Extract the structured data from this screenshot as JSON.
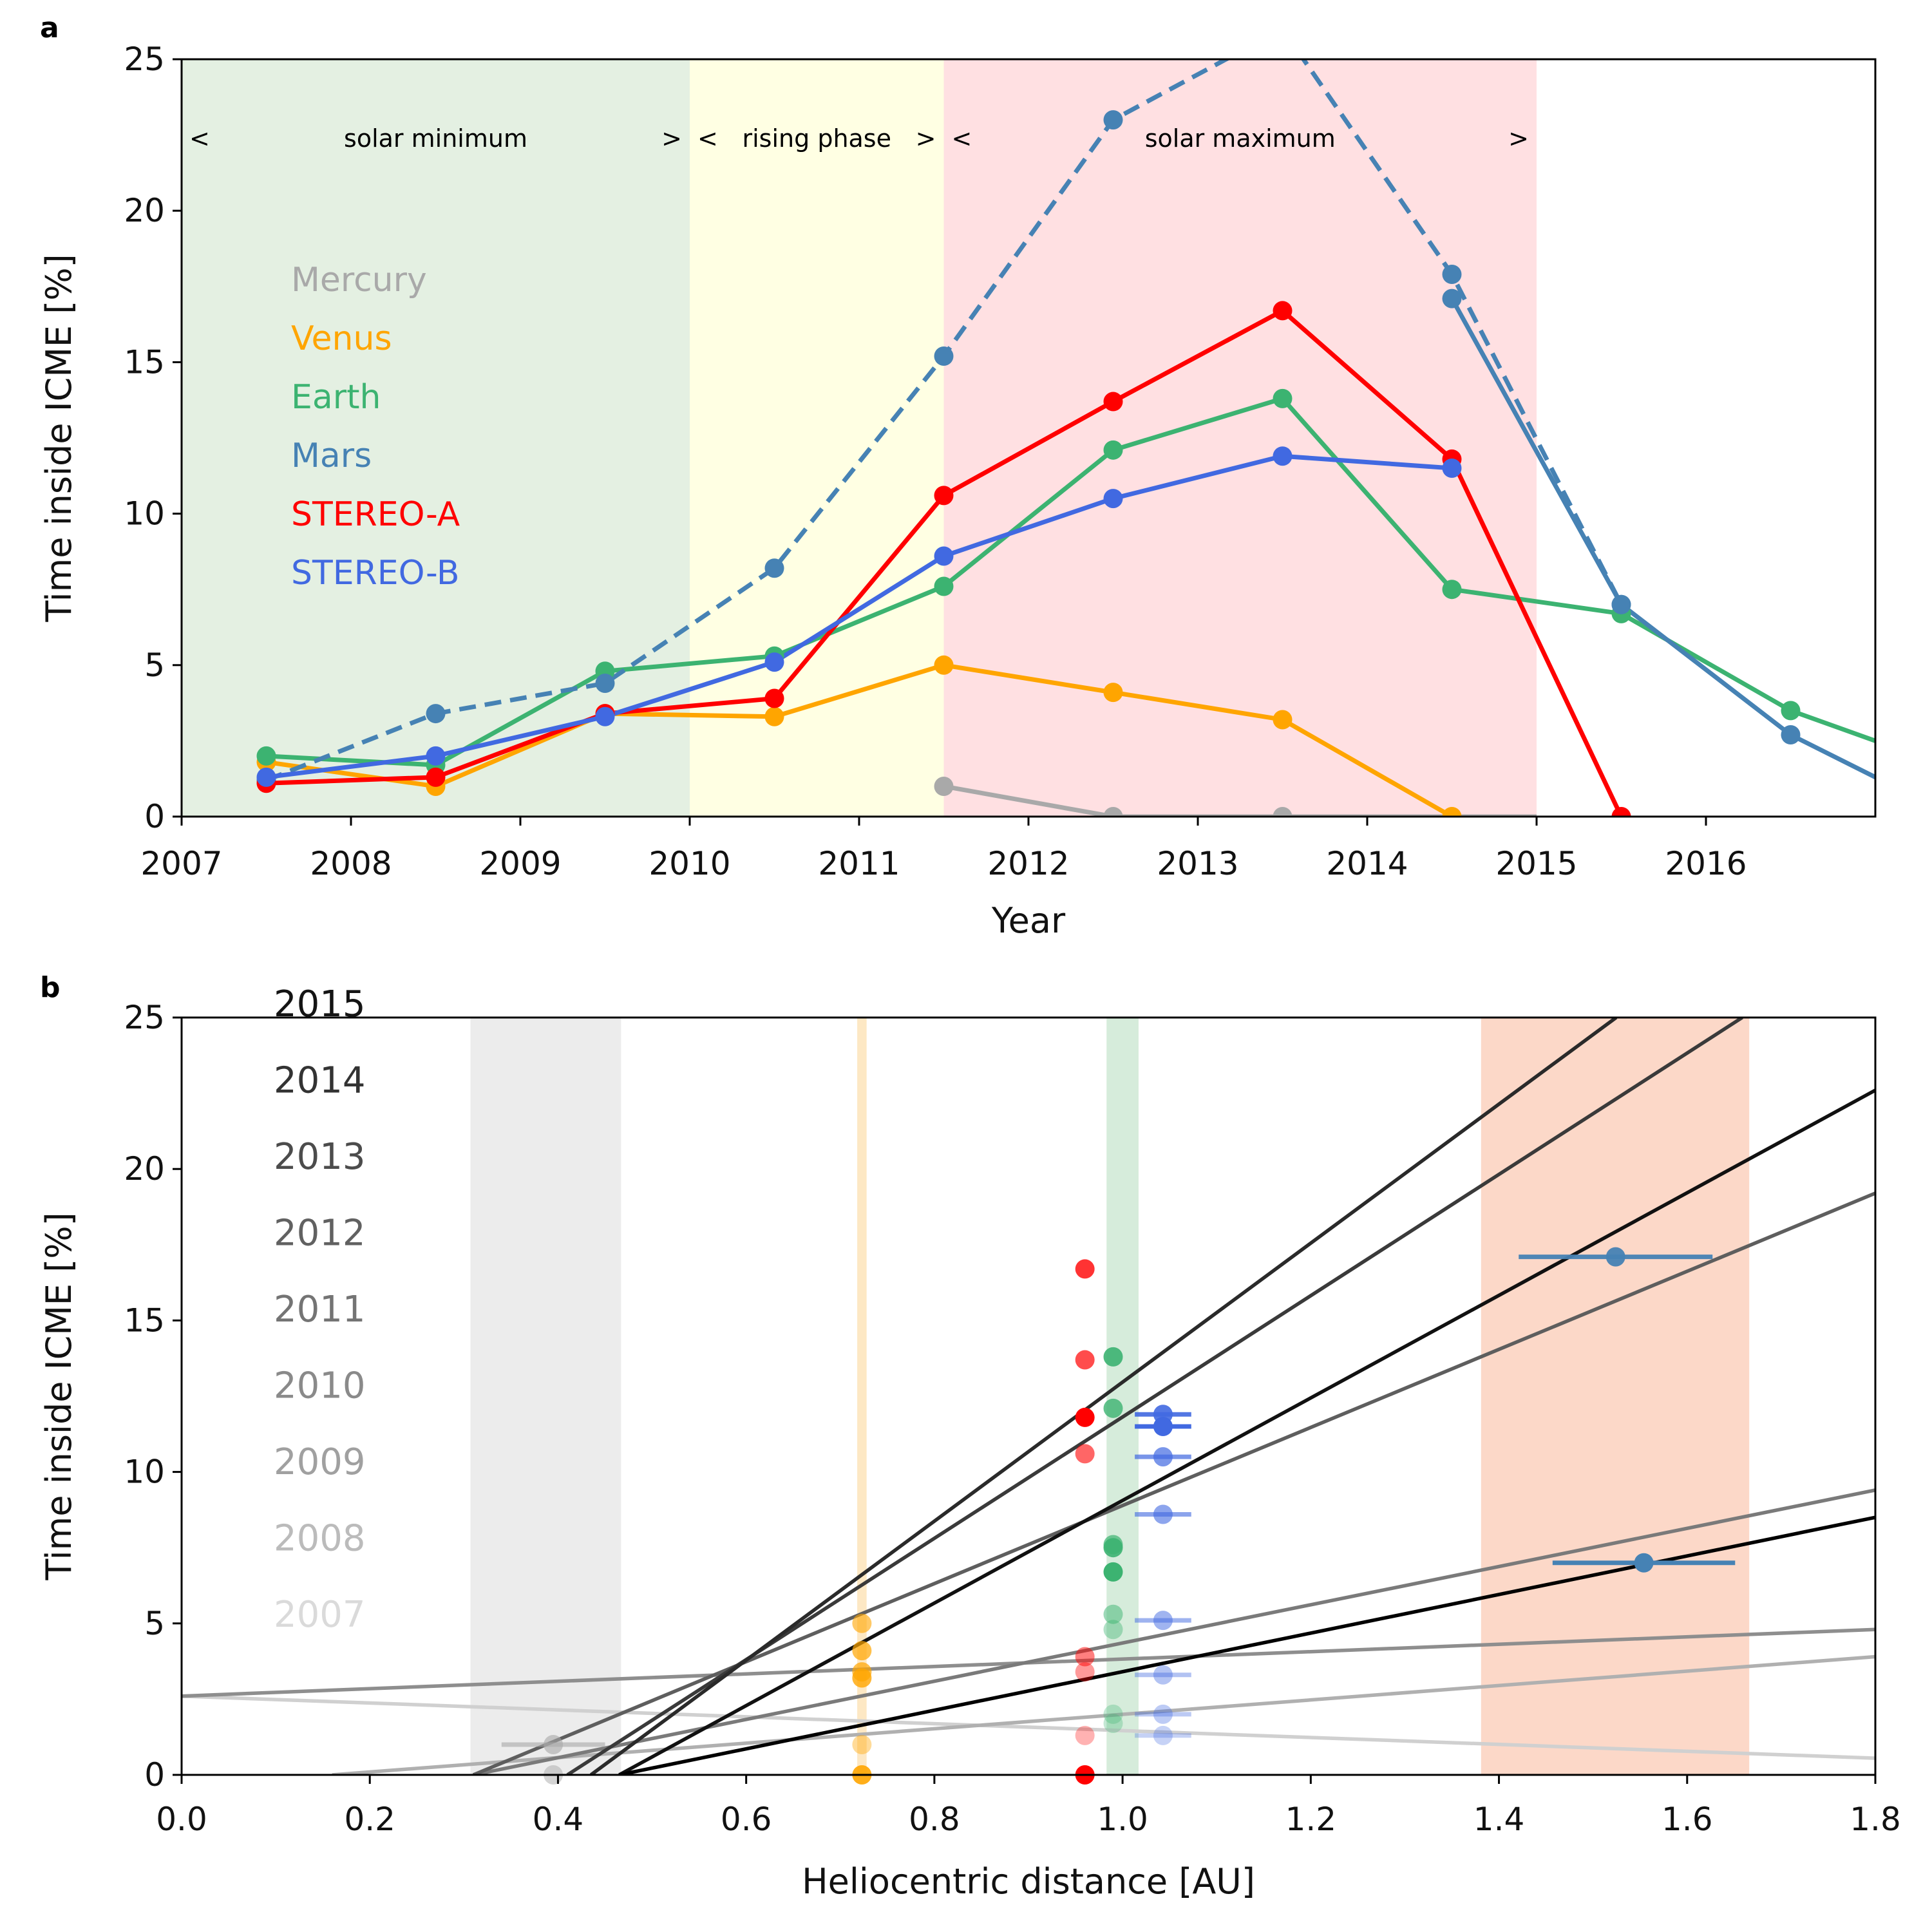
{
  "panel_a": {
    "letter": "a",
    "phases": [
      {
        "name": "solar minimum",
        "start": 2007,
        "end": 2010,
        "color": "#e4f0e2",
        "left_marker": "<",
        "right_marker": ">"
      },
      {
        "name": "rising phase",
        "start": 2010,
        "end": 2011.5,
        "color": "#ffffe3",
        "left_marker": "<",
        "right_marker": ">"
      },
      {
        "name": "solar maximum",
        "start": 2011.5,
        "end": 2015,
        "color": "#ffe0e2",
        "left_marker": "<",
        "right_marker": ">"
      }
    ],
    "legend": [
      {
        "label": "Mercury",
        "color": "#a9a9a9"
      },
      {
        "label": "Venus",
        "color": "#ffa500"
      },
      {
        "label": "Earth",
        "color": "#3cb371"
      },
      {
        "label": "Mars",
        "color": "#4682b4"
      },
      {
        "label": "STEREO-A",
        "color": "#ff0000"
      },
      {
        "label": "STEREO-B",
        "color": "#4169e1"
      }
    ]
  },
  "panel_b": {
    "letter": "b",
    "year_legend": [
      {
        "label": "2015",
        "color": "#141414"
      },
      {
        "label": "2014",
        "color": "#333333"
      },
      {
        "label": "2013",
        "color": "#4c4c4c"
      },
      {
        "label": "2012",
        "color": "#616161"
      },
      {
        "label": "2011",
        "color": "#747474"
      },
      {
        "label": "2010",
        "color": "#8a8a8a"
      },
      {
        "label": "2009",
        "color": "#a0a0a0"
      },
      {
        "label": "2008",
        "color": "#bbbbbb"
      },
      {
        "label": "2007",
        "color": "#dadada"
      }
    ]
  },
  "chart_data": [
    {
      "type": "line",
      "title": "",
      "xlabel": "Year",
      "ylabel": "Time inside ICME [%]",
      "xlim": [
        2007,
        2017
      ],
      "ylim": [
        0,
        25
      ],
      "xticks": [
        2007,
        2008,
        2009,
        2010,
        2011,
        2012,
        2013,
        2014,
        2015,
        2016
      ],
      "yticks": [
        0,
        5,
        10,
        15,
        20,
        25
      ],
      "series": [
        {
          "name": "Mercury",
          "color": "#a9a9a9",
          "style": "solid",
          "x": [
            2011.5,
            2012.5,
            2013.5,
            2014.5,
            2015
          ],
          "y": [
            1.0,
            0.0,
            0.0,
            0.0,
            0.0
          ],
          "markers": [
            true,
            true,
            true,
            false,
            false
          ]
        },
        {
          "name": "Venus",
          "color": "#ffa500",
          "style": "solid",
          "x": [
            2007.5,
            2008.5,
            2009.5,
            2010.5,
            2011.5,
            2012.5,
            2013.5,
            2014.5
          ],
          "y": [
            1.8,
            1.0,
            3.4,
            3.3,
            5.0,
            4.1,
            3.2,
            0.0
          ],
          "markers": [
            true,
            true,
            true,
            true,
            true,
            true,
            true,
            true
          ]
        },
        {
          "name": "Earth",
          "color": "#3cb371",
          "style": "solid",
          "x": [
            2007.5,
            2008.5,
            2009.5,
            2010.5,
            2011.5,
            2012.5,
            2013.5,
            2014.5,
            2015.5,
            2016.5,
            2017
          ],
          "y": [
            2.0,
            1.7,
            4.8,
            5.3,
            7.6,
            12.1,
            13.8,
            7.5,
            6.7,
            3.5,
            2.5
          ],
          "markers": [
            true,
            true,
            true,
            true,
            true,
            true,
            true,
            true,
            true,
            true,
            false
          ]
        },
        {
          "name": "Mars (dashed)",
          "color": "#4682b4",
          "style": "dashed",
          "x": [
            2007.5,
            2008.5,
            2009.5,
            2010.5,
            2011.5,
            2012.5,
            2013.5,
            2014.5,
            2015.5
          ],
          "y": [
            1.2,
            3.4,
            4.4,
            8.2,
            15.2,
            23.0,
            26.0,
            17.9,
            7.0
          ],
          "markers": [
            true,
            true,
            true,
            true,
            true,
            true,
            false,
            true,
            true
          ]
        },
        {
          "name": "Mars",
          "color": "#4682b4",
          "style": "solid",
          "x": [
            2014.5,
            2015.5,
            2016.5,
            2017
          ],
          "y": [
            17.1,
            7.0,
            2.7,
            1.3
          ],
          "markers": [
            true,
            true,
            true,
            false
          ]
        },
        {
          "name": "STEREO-A",
          "color": "#ff0000",
          "style": "solid",
          "x": [
            2007.5,
            2008.5,
            2009.5,
            2010.5,
            2011.5,
            2012.5,
            2013.5,
            2014.5,
            2015.5
          ],
          "y": [
            1.1,
            1.3,
            3.4,
            3.9,
            10.6,
            13.7,
            16.7,
            11.8,
            0.0
          ],
          "markers": [
            true,
            true,
            true,
            true,
            true,
            true,
            true,
            true,
            true
          ]
        },
        {
          "name": "STEREO-B",
          "color": "#4169e1",
          "style": "solid",
          "x": [
            2007.5,
            2008.5,
            2009.5,
            2010.5,
            2011.5,
            2012.5,
            2013.5,
            2014.5
          ],
          "y": [
            1.3,
            2.0,
            3.3,
            5.1,
            8.6,
            10.5,
            11.9,
            11.5
          ],
          "markers": [
            true,
            true,
            true,
            true,
            true,
            true,
            true,
            true
          ]
        }
      ]
    },
    {
      "type": "scatter",
      "title": "",
      "xlabel": "Heliocentric distance [AU]",
      "ylabel": "Time inside ICME [%]",
      "xlim": [
        0,
        1.8
      ],
      "ylim": [
        0,
        25
      ],
      "xticks": [
        0.0,
        0.2,
        0.4,
        0.6,
        0.8,
        1.0,
        1.2,
        1.4,
        1.6,
        1.8
      ],
      "yticks": [
        0,
        5,
        10,
        15,
        20,
        25
      ],
      "ranges": [
        {
          "name": "Mercury orbit range",
          "x": [
            0.307,
            0.467
          ],
          "color": "#ececec"
        },
        {
          "name": "Venus orbit range",
          "x": [
            0.718,
            0.728
          ],
          "color": "#fde8c4"
        },
        {
          "name": "Earth orbit range",
          "x": [
            0.983,
            1.017
          ],
          "color": "#d6ecdb"
        },
        {
          "name": "Mars orbit range",
          "x": [
            1.381,
            1.666
          ],
          "color": "#fcd8c8"
        }
      ],
      "fit_lines": [
        {
          "year": "2007",
          "color": "#d0d0d0",
          "x": [
            0,
            1.8
          ],
          "y": [
            2.6,
            0.55
          ]
        },
        {
          "year": "2008",
          "color": "#b0b0b0",
          "x": [
            0.16,
            1.8
          ],
          "y": [
            0.0,
            3.9
          ]
        },
        {
          "year": "2009",
          "color": "#8e8e8e",
          "x": [
            0,
            1.8
          ],
          "y": [
            2.6,
            4.8
          ]
        },
        {
          "year": "2010",
          "color": "#7a7a7a",
          "x": [
            0.31,
            1.8
          ],
          "y": [
            0.0,
            9.4
          ]
        },
        {
          "year": "2011",
          "color": "#5e5e5e",
          "x": [
            0.31,
            1.8
          ],
          "y": [
            0.0,
            19.2
          ]
        },
        {
          "year": "2012",
          "color": "#3a3a3a",
          "x": [
            0.41,
            1.6586
          ],
          "y": [
            0.0,
            25.0
          ]
        },
        {
          "year": "2013",
          "color": "#2a2a2a",
          "x": [
            0.435,
            1.5246
          ],
          "y": [
            0.0,
            25.0
          ]
        },
        {
          "year": "2014",
          "color": "#111111",
          "x": [
            0.465,
            1.8
          ],
          "y": [
            0.0,
            22.6
          ]
        },
        {
          "year": "2015",
          "color": "#000000",
          "x": [
            0.465,
            1.8
          ],
          "y": [
            0.0,
            8.5
          ]
        }
      ],
      "series": [
        {
          "name": "Mercury",
          "color": "#a9a9a9",
          "points": [
            {
              "x": 0.395,
              "y": 1.0,
              "xerr": 0.055,
              "alpha": 0.6
            },
            {
              "x": 0.395,
              "y": 0.0,
              "xerr": 0,
              "alpha": 0.5
            }
          ]
        },
        {
          "name": "Venus",
          "color": "#ffa500",
          "points": [
            {
              "x": 0.723,
              "y": 5.0,
              "alpha": 0.6
            },
            {
              "x": 0.723,
              "y": 4.1,
              "alpha": 0.7
            },
            {
              "x": 0.723,
              "y": 3.4,
              "alpha": 0.7
            },
            {
              "x": 0.723,
              "y": 3.2,
              "alpha": 0.8
            },
            {
              "x": 0.723,
              "y": 1.0,
              "alpha": 0.4
            },
            {
              "x": 0.723,
              "y": 0.0,
              "alpha": 0.9
            }
          ]
        },
        {
          "name": "Earth",
          "color": "#3cb371",
          "points": [
            {
              "x": 0.99,
              "y": 13.8,
              "alpha": 0.9
            },
            {
              "x": 0.99,
              "y": 12.1,
              "alpha": 0.8
            },
            {
              "x": 0.99,
              "y": 7.6,
              "alpha": 0.7
            },
            {
              "x": 0.99,
              "y": 7.5,
              "alpha": 0.9
            },
            {
              "x": 0.99,
              "y": 6.7,
              "alpha": 1.0
            },
            {
              "x": 0.99,
              "y": 5.3,
              "alpha": 0.5
            },
            {
              "x": 0.99,
              "y": 4.8,
              "alpha": 0.4
            },
            {
              "x": 0.99,
              "y": 2.0,
              "alpha": 0.3
            },
            {
              "x": 0.99,
              "y": 1.7,
              "alpha": 0.3
            }
          ]
        },
        {
          "name": "STEREO-A",
          "color": "#ff0000",
          "points": [
            {
              "x": 0.96,
              "y": 16.7,
              "alpha": 0.8
            },
            {
              "x": 0.96,
              "y": 13.7,
              "alpha": 0.7
            },
            {
              "x": 0.96,
              "y": 11.8,
              "alpha": 1.0
            },
            {
              "x": 0.96,
              "y": 10.6,
              "alpha": 0.6
            },
            {
              "x": 0.96,
              "y": 3.9,
              "alpha": 0.5
            },
            {
              "x": 0.96,
              "y": 3.4,
              "alpha": 0.4
            },
            {
              "x": 0.96,
              "y": 1.3,
              "alpha": 0.3
            },
            {
              "x": 0.96,
              "y": 0.0,
              "alpha": 1.0
            }
          ]
        },
        {
          "name": "STEREO-B",
          "color": "#4169e1",
          "points": [
            {
              "x": 1.043,
              "y": 11.9,
              "xerr": 0.03,
              "alpha": 0.9
            },
            {
              "x": 1.043,
              "y": 11.5,
              "xerr": 0.03,
              "alpha": 1.0
            },
            {
              "x": 1.043,
              "y": 10.5,
              "xerr": 0.03,
              "alpha": 0.7
            },
            {
              "x": 1.043,
              "y": 8.6,
              "xerr": 0.03,
              "alpha": 0.6
            },
            {
              "x": 1.043,
              "y": 5.1,
              "xerr": 0.03,
              "alpha": 0.5
            },
            {
              "x": 1.043,
              "y": 3.3,
              "xerr": 0.03,
              "alpha": 0.4
            },
            {
              "x": 1.043,
              "y": 2.0,
              "xerr": 0.03,
              "alpha": 0.35
            },
            {
              "x": 1.043,
              "y": 1.3,
              "xerr": 0.03,
              "alpha": 0.3
            }
          ]
        },
        {
          "name": "Mars",
          "color": "#4682b4",
          "points": [
            {
              "x": 1.524,
              "y": 17.1,
              "xerr": 0.103,
              "alpha": 0.95
            },
            {
              "x": 1.554,
              "y": 7.0,
              "xerr": 0.097,
              "alpha": 1.0
            }
          ]
        }
      ]
    }
  ]
}
